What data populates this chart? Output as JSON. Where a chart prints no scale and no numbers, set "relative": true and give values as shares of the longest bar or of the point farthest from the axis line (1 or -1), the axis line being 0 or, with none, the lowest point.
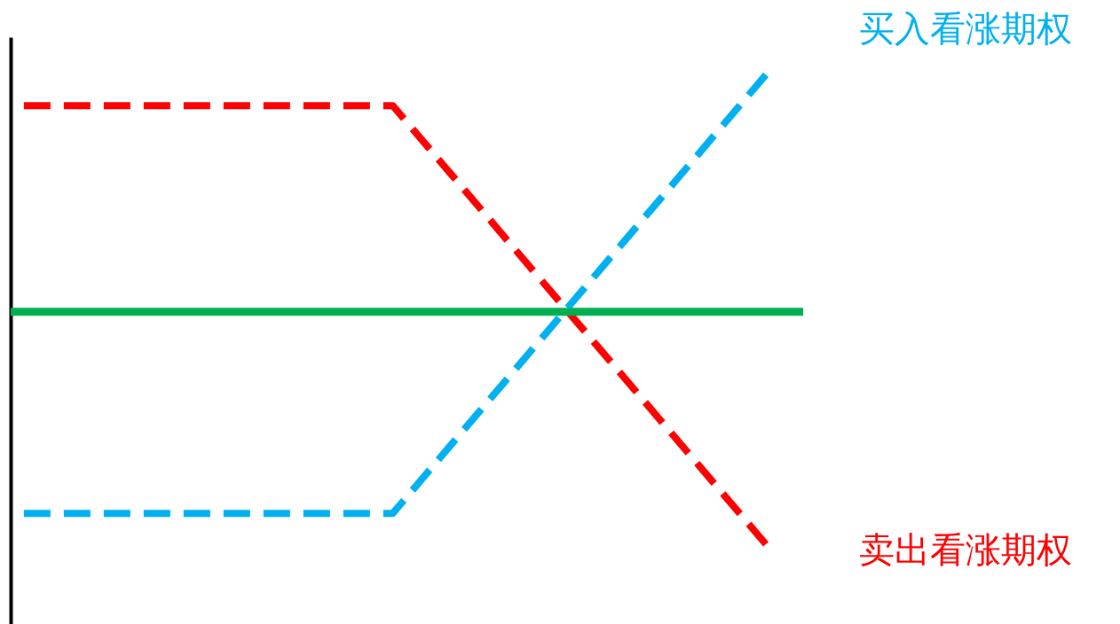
{
  "chart_data": {
    "type": "line",
    "relative": true,
    "categories": [
      null,
      null,
      null
    ],
    "series": [
      {
        "name": "买入看涨期权",
        "color": "#00b0f0",
        "values": [
          -0.85,
          -0.85,
          1
        ]
      },
      {
        "name": "卖出看涨期权",
        "color": "#ff0000",
        "values": [
          0.87,
          0.87,
          -0.98
        ]
      }
    ],
    "ref_lines": [
      {
        "axis": "y",
        "value": 0,
        "color": "#00b050"
      }
    ],
    "line_style": "dashed",
    "marker": "none",
    "legend": false,
    "grid": false
  }
}
